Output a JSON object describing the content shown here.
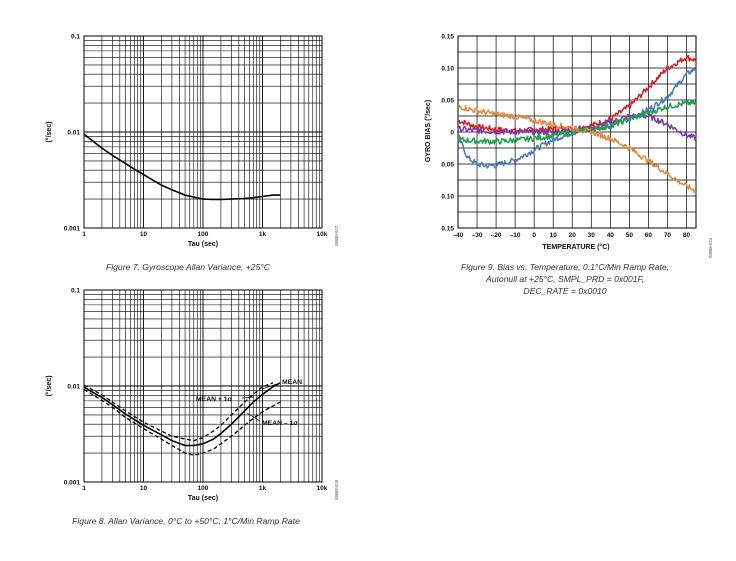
{
  "figures": {
    "fig7": {
      "caption": "Figure 7. Gyroscope Allan Variance, +25°C",
      "code": "08888-007",
      "chart_data": {
        "type": "line",
        "xlabel": "Tau (sec)",
        "ylabel": "(°/sec)",
        "xscale": "log",
        "yscale": "log",
        "xlim": [
          1,
          10000
        ],
        "ylim": [
          0.001,
          0.1
        ],
        "x_ticks": [
          "1",
          "10",
          "100",
          "1k",
          "10k"
        ],
        "y_ticks": [
          "0.1",
          "0.01",
          "0.001"
        ],
        "grid": true,
        "series": [
          {
            "name": "",
            "style": "solid",
            "x": [
              1,
              1.5,
              2,
              3,
              5,
              7,
              10,
              15,
              20,
              30,
              50,
              70,
              100,
              150,
              200,
              300,
              500,
              700,
              1000,
              1500,
              2000
            ],
            "y": [
              0.0095,
              0.0078,
              0.0068,
              0.0057,
              0.0047,
              0.0041,
              0.0036,
              0.0031,
              0.0028,
              0.0025,
              0.0022,
              0.0021,
              0.002,
              0.00198,
              0.00198,
              0.002,
              0.00203,
              0.00207,
              0.00213,
              0.0022,
              0.0022
            ]
          }
        ]
      }
    },
    "fig8": {
      "caption": "Figure 8. Allan Variance, 0°C to +50°C, 1°C/Min Ramp Rate",
      "code": "08888-008",
      "chart_data": {
        "type": "line",
        "xlabel": "Tau (sec)",
        "ylabel": "(°/sec)",
        "xscale": "log",
        "yscale": "log",
        "xlim": [
          1,
          10000
        ],
        "ylim": [
          0.001,
          0.1
        ],
        "x_ticks": [
          "1",
          "10",
          "100",
          "1k",
          "10k"
        ],
        "y_ticks": [
          "0.1",
          "0.01",
          "0.001"
        ],
        "grid": true,
        "annotations": [
          "MEAN",
          "MEAN + 1σ",
          "MEAN – 1σ"
        ],
        "series": [
          {
            "name": "MEAN + 1σ",
            "style": "dashed",
            "x": [
              1,
              2,
              3,
              5,
              10,
              20,
              30,
              50,
              70,
              100,
              150,
              200,
              300,
              500,
              700,
              1000,
              1500
            ],
            "y": [
              0.0102,
              0.0081,
              0.0068,
              0.0055,
              0.0042,
              0.0034,
              0.003,
              0.0028,
              0.0027,
              0.0029,
              0.0034,
              0.0039,
              0.005,
              0.0068,
              0.0082,
              0.0098,
              0.0108
            ]
          },
          {
            "name": "MEAN",
            "style": "solid",
            "x": [
              1,
              2,
              3,
              5,
              10,
              20,
              30,
              50,
              70,
              100,
              150,
              200,
              300,
              500,
              700,
              1000,
              1500,
              2000
            ],
            "y": [
              0.0097,
              0.0076,
              0.0064,
              0.0051,
              0.0039,
              0.0031,
              0.0027,
              0.0024,
              0.0024,
              0.0025,
              0.0028,
              0.0032,
              0.004,
              0.0055,
              0.0068,
              0.0082,
              0.0098,
              0.0108
            ]
          },
          {
            "name": "MEAN – 1σ",
            "style": "dashed",
            "x": [
              1,
              2,
              3,
              5,
              10,
              20,
              30,
              50,
              70,
              100,
              150,
              200,
              300,
              500,
              700,
              1000,
              1500,
              2000
            ],
            "y": [
              0.0092,
              0.0071,
              0.006,
              0.0047,
              0.0036,
              0.0028,
              0.0024,
              0.002,
              0.0019,
              0.002,
              0.0022,
              0.0025,
              0.003,
              0.0039,
              0.0046,
              0.0054,
              0.0062,
              0.0068
            ]
          }
        ]
      }
    },
    "fig9": {
      "caption_lines": [
        "Figure 9. Bias vs. Temperature, 0.1°C/Min Ramp Rate,",
        "Autonull at +25°C, SMPL_PRD = 0x001F,",
        "DEC_RATE = 0x0010"
      ],
      "code": "08888-024",
      "chart_data": {
        "type": "line",
        "xlabel": "TEMPERATURE (°C)",
        "ylabel": "GYRO BIAS (°/sec)",
        "xlim": [
          -40,
          85
        ],
        "ylim": [
          -0.15,
          0.15
        ],
        "x_ticks": [
          "–40",
          "–30",
          "–20",
          "–10",
          "0",
          "10",
          "20",
          "30",
          "40",
          "50",
          "60",
          "70",
          "80"
        ],
        "y_ticks": [
          "0.15",
          "0.10",
          "0.05",
          "0",
          "0.05",
          "0.10",
          "0.15"
        ],
        "grid": true,
        "series": [
          {
            "name": "",
            "color": "#d42020",
            "x": [
              -40,
              -30,
              -20,
              -10,
              0,
              10,
              20,
              30,
              40,
              50,
              60,
              70,
              80,
              85
            ],
            "y": [
              0.018,
              0.008,
              0.004,
              0.002,
              0.003,
              0.005,
              0.005,
              0.01,
              0.02,
              0.04,
              0.07,
              0.1,
              0.117,
              0.112
            ]
          },
          {
            "name": "",
            "color": "#4a78b8",
            "x": [
              -40,
              -35,
              -30,
              -25,
              -20,
              -10,
              0,
              10,
              20,
              30,
              40,
              50,
              60,
              70,
              80,
              85
            ],
            "y": [
              -0.005,
              -0.04,
              -0.05,
              -0.053,
              -0.052,
              -0.044,
              -0.028,
              -0.012,
              -0.001,
              0.004,
              0.01,
              0.02,
              0.035,
              0.055,
              0.09,
              0.1
            ]
          },
          {
            "name": "",
            "color": "#7a3aa8",
            "x": [
              -40,
              -30,
              -20,
              -10,
              0,
              10,
              20,
              30,
              40,
              50,
              60,
              70,
              80,
              85
            ],
            "y": [
              0.005,
              0.002,
              0.001,
              0.0,
              0.0,
              0.0,
              0.003,
              0.005,
              0.015,
              0.025,
              0.025,
              0.012,
              -0.005,
              -0.01
            ]
          },
          {
            "name": "",
            "color": "#1ea04a",
            "x": [
              -40,
              -30,
              -20,
              -10,
              0,
              10,
              20,
              30,
              40,
              50,
              60,
              70,
              80,
              85
            ],
            "y": [
              -0.012,
              -0.014,
              -0.015,
              -0.013,
              -0.01,
              -0.006,
              0.0,
              0.004,
              0.01,
              0.02,
              0.03,
              0.04,
              0.045,
              0.045
            ]
          },
          {
            "name": "",
            "color": "#e08840",
            "x": [
              -40,
              -30,
              -20,
              -10,
              0,
              10,
              20,
              30,
              40,
              50,
              60,
              70,
              80,
              85
            ],
            "y": [
              0.04,
              0.033,
              0.028,
              0.024,
              0.018,
              0.012,
              0.006,
              0.0,
              -0.01,
              -0.025,
              -0.045,
              -0.065,
              -0.085,
              -0.092
            ]
          }
        ]
      }
    }
  }
}
